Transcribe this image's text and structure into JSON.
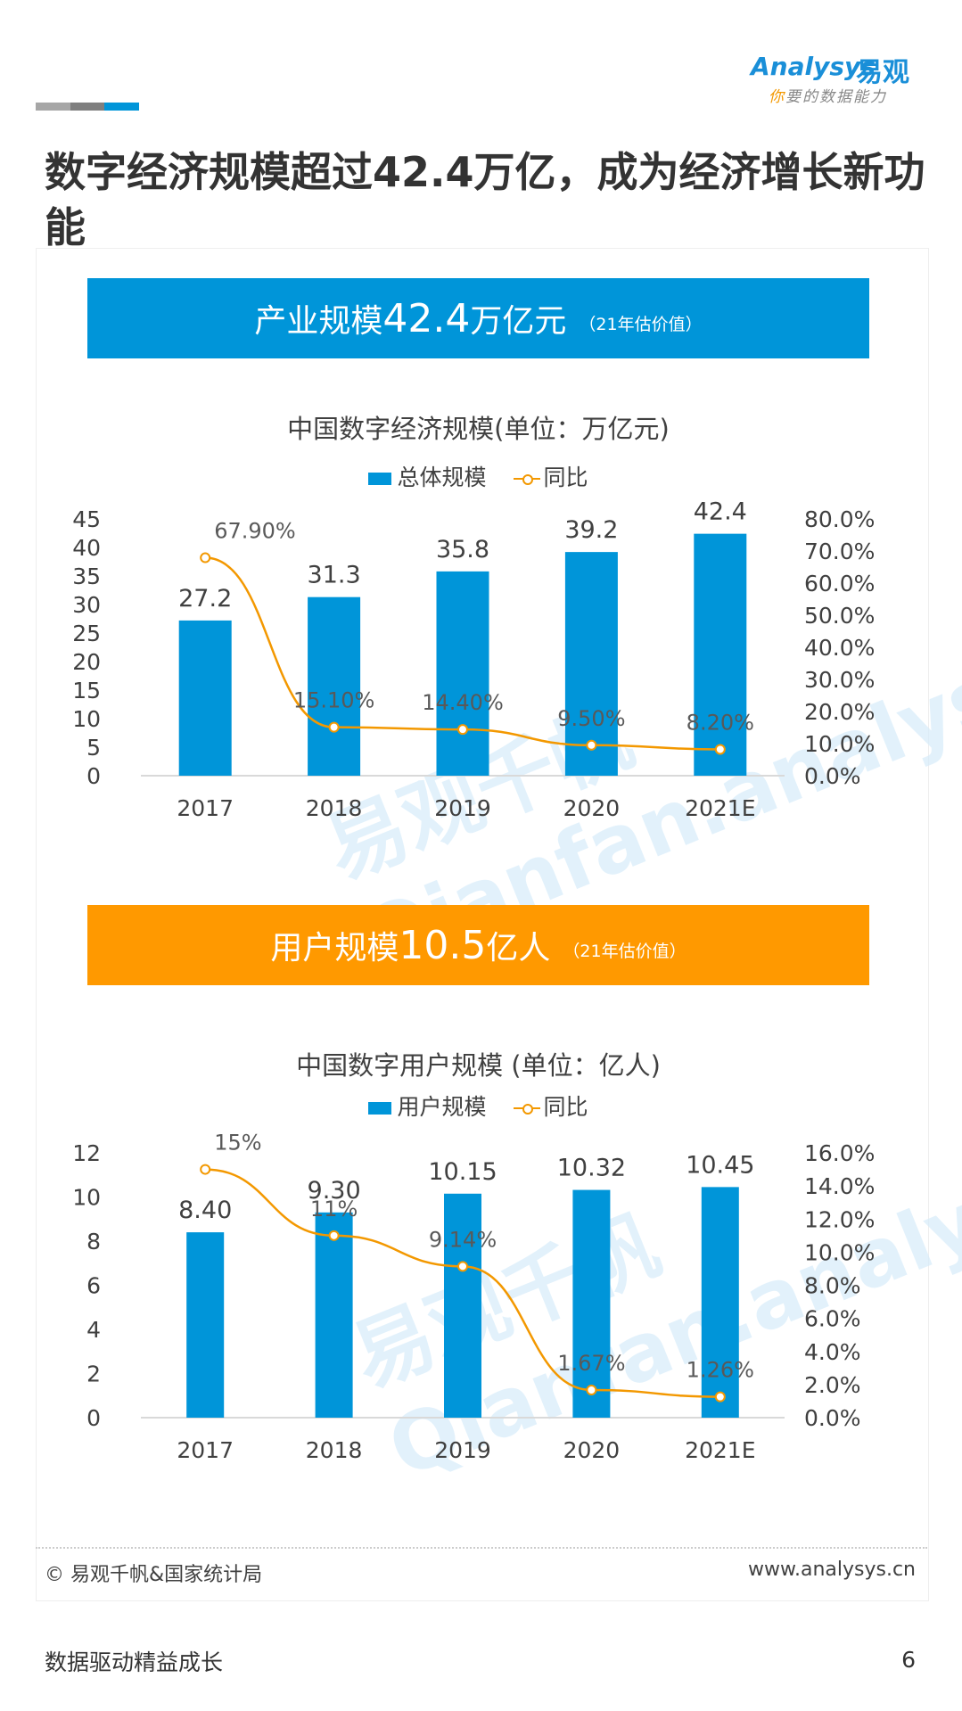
{
  "header": {
    "logo_en": "Analysys",
    "logo_cn": "易观",
    "slogan_first": "你",
    "slogan_rest": "要的数据能力",
    "deco_colors": [
      "#a6a6a6",
      "#7f7f7f",
      "#0095d9"
    ]
  },
  "page_title": "数字经济规模超过42.4万亿，成为经济增长新功能",
  "watermark": "易观千帆 Qianfan.analysys.cn",
  "banner1": {
    "prefix": "产业规模",
    "number": "42.4",
    "suffix": "万亿元",
    "note": "（21年估价值）",
    "color": "#0095d9"
  },
  "banner2": {
    "prefix": "用户规模",
    "number": "10.5",
    "suffix": "亿人",
    "note": "（21年估价值）",
    "color": "#ff9900"
  },
  "chart_data": [
    {
      "type": "bar",
      "title": "中国数字经济规模(单位：万亿元)",
      "categories": [
        "2017",
        "2018",
        "2019",
        "2020",
        "2021E"
      ],
      "series": [
        {
          "name": "总体规模",
          "type": "bar",
          "values": [
            27.2,
            31.3,
            35.8,
            39.2,
            42.4
          ],
          "labels": [
            "27.2",
            "31.3",
            "35.8",
            "39.2",
            "42.4"
          ],
          "color": "#0095d9"
        },
        {
          "name": "同比",
          "type": "line",
          "axis": "right",
          "values": [
            67.9,
            15.1,
            14.4,
            9.5,
            8.2
          ],
          "labels": [
            "67.90%",
            "15.10%",
            "14.40%",
            "9.50%",
            "8.20%"
          ],
          "color": "#f39800"
        }
      ],
      "ylim": [
        0,
        45
      ],
      "yticks": [
        "0",
        "5",
        "10",
        "15",
        "20",
        "25",
        "30",
        "35",
        "40",
        "45"
      ],
      "y2lim": [
        0,
        80
      ],
      "y2ticks": [
        "0.0%",
        "10.0%",
        "20.0%",
        "30.0%",
        "40.0%",
        "50.0%",
        "60.0%",
        "70.0%",
        "80.0%"
      ],
      "grid": false,
      "legend": "top"
    },
    {
      "type": "bar",
      "title": "中国数字用户规模 (单位：亿人)",
      "categories": [
        "2017",
        "2018",
        "2019",
        "2020",
        "2021E"
      ],
      "series": [
        {
          "name": "用户规模",
          "type": "bar",
          "values": [
            8.4,
            9.3,
            10.15,
            10.32,
            10.45
          ],
          "labels": [
            "8.40",
            "9.30",
            "10.15",
            "10.32",
            "10.45"
          ],
          "color": "#0095d9"
        },
        {
          "name": "同比",
          "type": "line",
          "axis": "right",
          "values": [
            15,
            11,
            9.14,
            1.67,
            1.26
          ],
          "labels": [
            "15%",
            "11%",
            "9.14%",
            "1.67%",
            "1.26%"
          ],
          "color": "#f39800"
        }
      ],
      "ylim": [
        0,
        12
      ],
      "yticks": [
        "0",
        "2",
        "4",
        "6",
        "8",
        "10",
        "12"
      ],
      "y2lim": [
        0,
        16
      ],
      "y2ticks": [
        "0.0%",
        "2.0%",
        "4.0%",
        "6.0%",
        "8.0%",
        "10.0%",
        "12.0%",
        "14.0%",
        "16.0%"
      ],
      "grid": false,
      "legend": "top"
    }
  ],
  "footer": {
    "source": "© 易观千帆&国家统计局",
    "site": "www.analysys.cn"
  },
  "bottom": {
    "text": "数据驱动精益成长",
    "page_number": "6"
  }
}
